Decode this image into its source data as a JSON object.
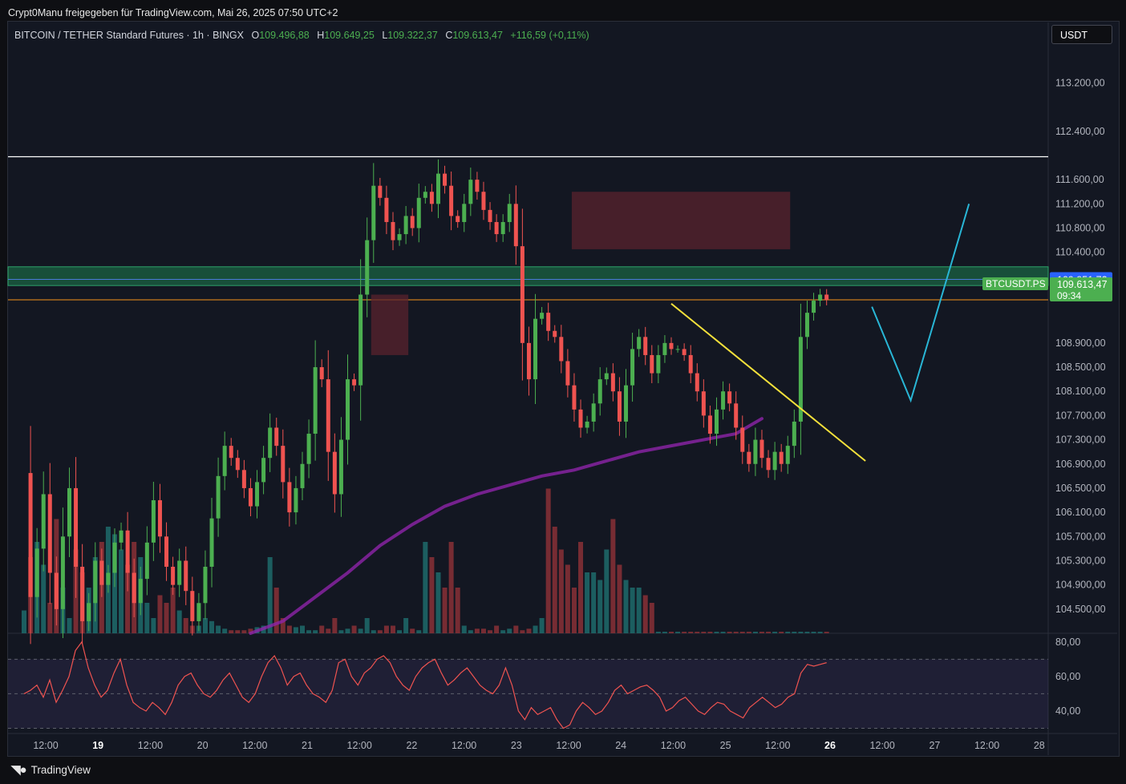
{
  "header": {
    "publisher": "Crypt0Manu freigegeben für TradingView.com, Mai 26, 2025 07:50 UTC+2"
  },
  "legend": {
    "symbol": "BITCOIN / TETHER Standard Futures · 1h · BINGX",
    "open_label": "O",
    "open": "109.496,88",
    "high_label": "H",
    "high": "109.649,25",
    "low_label": "L",
    "low": "109.322,37",
    "close_label": "C",
    "close": "109.613,47",
    "change": "+116,59 (+0,11%)"
  },
  "currency_button": "USDT",
  "price_badges": {
    "level": "109.951,72",
    "symbol_tag": "BTCUSDT.PS",
    "last": "109.613,47",
    "countdown": "09:34"
  },
  "footer": {
    "brand": "TradingView"
  },
  "colors": {
    "background": "#131722",
    "up": "#26a69a",
    "down": "#ef5350",
    "candle_up": "#4caf50",
    "ma": "#8e24aa",
    "rsi": "#ef5350",
    "trendline": "#f5e13b",
    "projection": "#29b6d6",
    "zone_green": "#1e7d4f",
    "zone_red": "#5a232e",
    "orange_line": "#f7931a",
    "blue_line": "#2962ff"
  },
  "chart_data": [
    {
      "type": "candlestick",
      "y_axis_ticks": [
        "113.200,00",
        "112.400,00",
        "111.600,00",
        "111.200,00",
        "110.800,00",
        "110.400,00",
        "108.900,00",
        "108.500,00",
        "108.100,00",
        "107.700,00",
        "107.300,00",
        "106.900,00",
        "106.500,00",
        "106.100,00",
        "105.700,00",
        "105.300,00",
        "104.900,00",
        "104.500,00"
      ],
      "y_ticks_values": [
        113200,
        112400,
        111600,
        111200,
        110800,
        110400,
        108900,
        108500,
        108100,
        107700,
        107300,
        106900,
        106500,
        106100,
        105700,
        105300,
        104900,
        104500
      ],
      "x_axis_ticks": [
        "12:00",
        "19",
        "12:00",
        "20",
        "12:00",
        "21",
        "12:00",
        "22",
        "12:00",
        "23",
        "12:00",
        "24",
        "12:00",
        "25",
        "12:00",
        "26",
        "12:00",
        "27",
        "12:00",
        "28"
      ],
      "bold_ticks": [
        "19",
        "26"
      ],
      "ylim": [
        104100,
        114200
      ],
      "levels": {
        "white_line": 111980,
        "zone_green": [
          109850,
          110160
        ],
        "blue_line": 109951.72,
        "orange_line": 109613.47
      },
      "path": [
        106750,
        104700,
        105500,
        106400,
        105100,
        104500,
        105700,
        106500,
        105200,
        104300,
        104600,
        105300,
        104900,
        105100,
        105600,
        105800,
        105100,
        104600,
        105000,
        105600,
        106300,
        105700,
        105200,
        104900,
        105300,
        104800,
        104300,
        104600,
        105200,
        106000,
        106700,
        107200,
        107000,
        106800,
        106500,
        106200,
        106600,
        107000,
        107500,
        107200,
        106600,
        106100,
        106500,
        106900,
        107400,
        108500,
        108300,
        107100,
        106400,
        107300,
        108300,
        108200,
        109700,
        110600,
        111500,
        111300,
        110900,
        110600,
        110700,
        111000,
        110800,
        111300,
        111400,
        111200,
        111700,
        111500,
        111000,
        110900,
        111200,
        111600,
        111400,
        111100,
        110900,
        110700,
        110900,
        111200,
        110500,
        108900,
        108300,
        109300,
        109400,
        109100,
        109000,
        108600,
        108200,
        107800,
        107500,
        107600,
        107900,
        108300,
        108400,
        108100,
        107600,
        108200,
        108800,
        109000,
        108700,
        108400,
        108700,
        108900,
        108800,
        108800,
        108700,
        108400,
        108100,
        107700,
        107400,
        107800,
        108100,
        107900,
        107500,
        107100,
        106900,
        107300,
        107000,
        106800,
        107100,
        106900,
        107200,
        107600,
        109000,
        109400,
        109600,
        109700,
        109613
      ],
      "volume_scale_max": 1,
      "volume": [
        0.15,
        0.5,
        0.6,
        0.45,
        0.2,
        0.75,
        0.3,
        0.1,
        0.55,
        0.4,
        0.3,
        0.5,
        0.6,
        0.7,
        0.65,
        0.55,
        0.45,
        0.6,
        0.5,
        0.2,
        0.1,
        0.25,
        0.2,
        0.3,
        0.15,
        0.1,
        0.05,
        0.05,
        0.1,
        0.08,
        0.05,
        0.03,
        0.02,
        0.02,
        0.02,
        0.03,
        0.04,
        0.05,
        0.5,
        0.3,
        0.1,
        0.05,
        0.04,
        0.05,
        0.02,
        0.02,
        0.05,
        0.03,
        0.1,
        0.02,
        0.03,
        0.05,
        0.03,
        0.1,
        0.02,
        0.02,
        0.05,
        0.05,
        0.02,
        0.1,
        0.03,
        0.02,
        0.6,
        0.5,
        0.4,
        0.3,
        0.6,
        0.3,
        0.05,
        0.02,
        0.03,
        0.03,
        0.02,
        0.05,
        0.02,
        0.03,
        0.05,
        0.02,
        0.03,
        0.05,
        0.1,
        0.95,
        0.7,
        0.55,
        0.45,
        0.3,
        0.6,
        0.4,
        0.4,
        0.35,
        0.55,
        0.75,
        0.45,
        0.35,
        0.3,
        0.3,
        0.25,
        0.2,
        0.01,
        0.01,
        0.01,
        0.01,
        0.01,
        0.01,
        0.01,
        0.01,
        0.01,
        0.01,
        0.01,
        0.01,
        0.01,
        0.01,
        0.01,
        0.01,
        0.01,
        0.01,
        0.01,
        0.01,
        0.01,
        0.01,
        0.01,
        0.01,
        0.01,
        0.01,
        0.01
      ],
      "ma": [
        [
          35,
          104100
        ],
        [
          40,
          104300
        ],
        [
          45,
          104700
        ],
        [
          50,
          105100
        ],
        [
          55,
          105550
        ],
        [
          60,
          105900
        ],
        [
          65,
          106200
        ],
        [
          70,
          106400
        ],
        [
          75,
          106550
        ],
        [
          80,
          106700
        ],
        [
          85,
          106800
        ],
        [
          90,
          106950
        ],
        [
          95,
          107100
        ],
        [
          100,
          107200
        ],
        [
          105,
          107300
        ],
        [
          110,
          107400
        ],
        [
          114,
          107650
        ]
      ],
      "trendline": [
        [
          100,
          109550
        ],
        [
          130,
          106950
        ]
      ],
      "projection": [
        [
          131,
          109500
        ],
        [
          137,
          107950
        ],
        [
          146,
          111200
        ]
      ],
      "zones_red": [
        {
          "x0": 54,
          "x1": 59,
          "y0": 109700,
          "y1": 108700
        },
        {
          "x0": 85,
          "x1": 118,
          "y0": 111400,
          "y1": 110450
        }
      ]
    },
    {
      "type": "line",
      "name": "RSI",
      "y_axis_ticks": [
        "80,00",
        "60,00",
        "40,00"
      ],
      "y_ticks_values": [
        80,
        60,
        40
      ],
      "band": [
        70,
        30
      ],
      "ylim": [
        27,
        85
      ],
      "values": [
        50,
        52,
        55,
        48,
        58,
        45,
        52,
        60,
        75,
        80,
        65,
        55,
        48,
        52,
        62,
        70,
        55,
        45,
        42,
        40,
        45,
        42,
        38,
        45,
        55,
        60,
        62,
        55,
        50,
        48,
        52,
        58,
        62,
        55,
        48,
        45,
        50,
        60,
        68,
        72,
        65,
        55,
        60,
        62,
        55,
        50,
        48,
        45,
        52,
        68,
        70,
        60,
        55,
        62,
        65,
        70,
        72,
        68,
        60,
        55,
        52,
        60,
        65,
        68,
        70,
        62,
        55,
        58,
        62,
        65,
        60,
        55,
        52,
        50,
        55,
        65,
        55,
        40,
        35,
        42,
        38,
        40,
        42,
        35,
        30,
        32,
        40,
        45,
        42,
        38,
        40,
        45,
        52,
        55,
        50,
        52,
        54,
        55,
        52,
        48,
        40,
        42,
        46,
        48,
        44,
        40,
        38,
        42,
        45,
        44,
        40,
        38,
        36,
        42,
        45,
        48,
        45,
        42,
        44,
        48,
        50,
        62,
        67,
        66,
        67,
        68
      ]
    }
  ]
}
